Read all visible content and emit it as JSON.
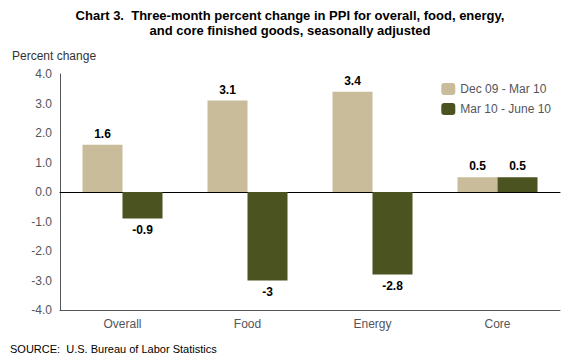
{
  "chart_data": {
    "type": "bar",
    "title": "Chart 3.  Three-month percent change in PPI for overall, food, energy,",
    "subtitle": "and core finished goods, seasonally adjusted",
    "ylabel": "Percent change",
    "source": "SOURCE:  U.S. Bureau of Labor Statistics",
    "categories": [
      "Overall",
      "Food",
      "Energy",
      "Core"
    ],
    "series": [
      {
        "name": "Dec 09 - Mar 10",
        "color": "#C8BC9A",
        "values": [
          1.6,
          3.1,
          3.4,
          0.5
        ]
      },
      {
        "name": "Mar 10 - June 10",
        "color": "#4B5320",
        "values": [
          -0.9,
          -3.0,
          -2.8,
          0.5
        ]
      }
    ],
    "ylim": [
      -4.0,
      4.0
    ],
    "yticks": [
      {
        "value": -4.0,
        "label": "-4.0"
      },
      {
        "value": -3.0,
        "label": "-3.0"
      },
      {
        "value": -2.0,
        "label": "-2.0"
      },
      {
        "value": -1.0,
        "label": "-1.0"
      },
      {
        "value": 0.0,
        "label": "0.0"
      },
      {
        "value": 1.0,
        "label": "1.0"
      },
      {
        "value": 2.0,
        "label": "2.0"
      },
      {
        "value": 3.0,
        "label": "3.0"
      },
      {
        "value": 4.0,
        "label": "4.0"
      }
    ],
    "data_labels": true,
    "legend": "upper right",
    "grid": false
  }
}
